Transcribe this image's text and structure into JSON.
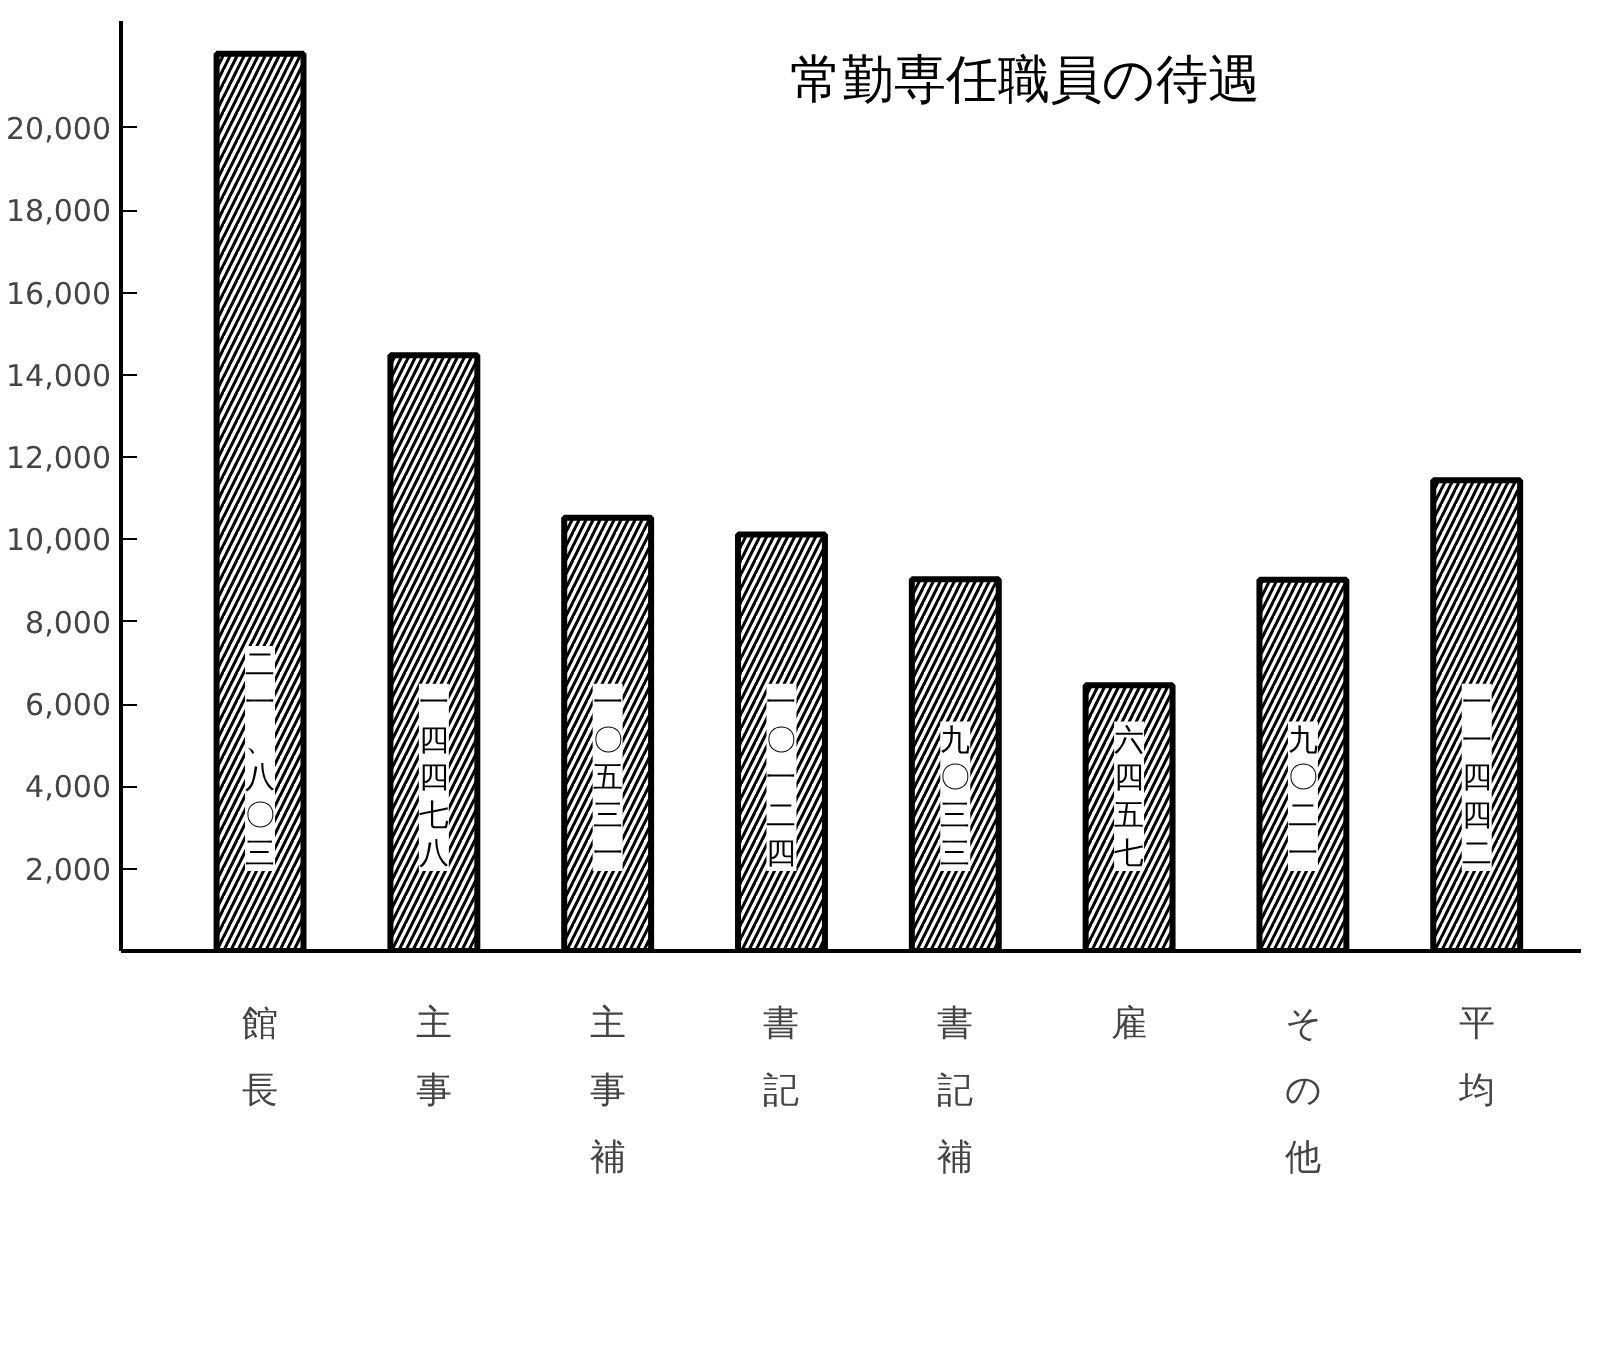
{
  "chart_data": {
    "type": "bar",
    "title": "常勤専任職員の待遇",
    "categories": [
      "館長",
      "主事",
      "主事補",
      "書記",
      "書記補",
      "雇",
      "その他",
      "平均"
    ],
    "values": [
      21803,
      14478,
      10531,
      10124,
      9033,
      6457,
      9021,
      11442
    ],
    "value_labels": [
      "二一、八〇三",
      "一四四七八",
      "一〇五三一",
      "一〇一二四",
      "九〇三三",
      "六四五七",
      "九〇二一",
      "一一四四二"
    ],
    "color": "#000000",
    "ylim": [
      0,
      22600
    ],
    "yticks": [
      {
        "value": 2000,
        "label": "2,000"
      },
      {
        "value": 4000,
        "label": "4,000"
      },
      {
        "value": 6000,
        "label": "6,000"
      },
      {
        "value": 8000,
        "label": "8,000"
      },
      {
        "value": 10000,
        "label": "10,000"
      },
      {
        "value": 12000,
        "label": "12,000"
      },
      {
        "value": 14000,
        "label": "14,000"
      },
      {
        "value": 16000,
        "label": "16,000"
      },
      {
        "value": 18000,
        "label": "18,000"
      },
      {
        "value": 20000,
        "label": "20,000"
      }
    ],
    "grid": false
  }
}
